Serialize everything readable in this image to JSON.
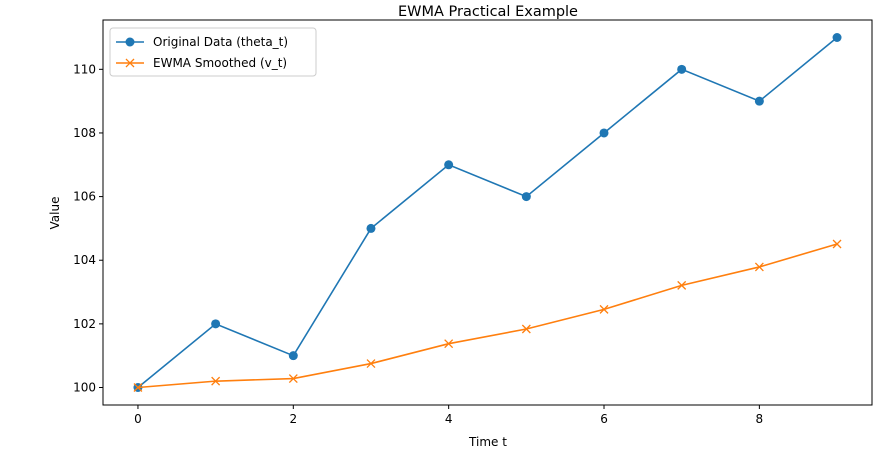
{
  "chart_data": {
    "type": "line",
    "title": "EWMA Practical Example",
    "xlabel": "Time t",
    "ylabel": "Value",
    "x": [
      0,
      1,
      2,
      3,
      4,
      5,
      6,
      7,
      8,
      9
    ],
    "xlim": [
      -0.45,
      9.45
    ],
    "ylim": [
      99.45,
      111.55
    ],
    "xticks": [
      0,
      2,
      4,
      6,
      8
    ],
    "yticks": [
      100,
      102,
      104,
      106,
      108,
      110
    ],
    "grid": false,
    "legend_position": "top-left",
    "series": [
      {
        "name": "Original Data (theta_t)",
        "color": "#1f77b4",
        "marker": "circle",
        "values": [
          100,
          102,
          101,
          105,
          107,
          106,
          108,
          110,
          109,
          111
        ]
      },
      {
        "name": "EWMA Smoothed (v_t)",
        "color": "#ff7f0e",
        "marker": "x",
        "values": [
          100.0,
          100.2,
          100.28,
          100.752,
          101.377,
          101.839,
          102.455,
          103.21,
          103.789,
          104.51
        ]
      }
    ]
  }
}
